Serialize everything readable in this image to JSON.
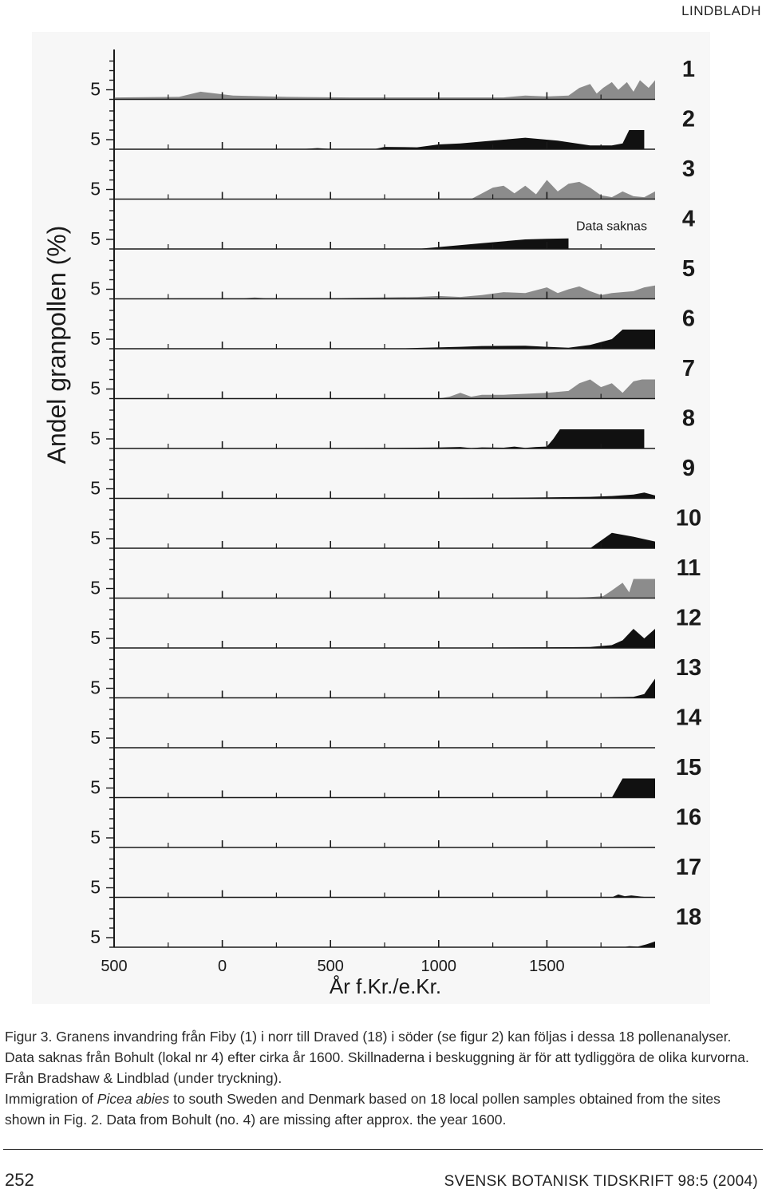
{
  "page": {
    "running_head": "LINDBLADH",
    "folio": "252",
    "journal": "SVENSK BOTANISK TIDSKRIFT 98:5 (2004)"
  },
  "caption": {
    "swedish_1": "Figur 3. Granens invandring från Fiby (1) i norr till Draved (18) i söder (se figur 2) kan följas i dessa 18 pollenanalyser.",
    "swedish_2": "Data saknas från Bohult (lokal nr 4) efter cirka år 1600. Skillnaderna i beskuggning är för att tydliggöra de olika kurvorna. Från Bradshaw & Lindblad (under tryckning).",
    "english_pre": "Immigration of ",
    "english_italic": "Picea abies",
    "english_post": " to south Sweden and Denmark based on 18 local pollen samples obtained from the sites shown in Fig. 2. Data from Bohult (no. 4) are missing after approx. the year 1600."
  },
  "colors": {
    "black_curve": "#111111",
    "gray_curve": "#8c8c8c",
    "background": "#f7f7f7"
  },
  "chart_data": {
    "type": "area",
    "ylabel": "Andel granpollen (%)",
    "xlabel": "År f.Kr./e.Kr.",
    "x_ticks": [
      -500,
      0,
      500,
      1000,
      1500
    ],
    "x_tick_labels": [
      "500",
      "0",
      "500",
      "1000",
      "1500"
    ],
    "xlim": [
      -500,
      2000
    ],
    "y_tick_label": "5",
    "y_unit_scale": 5,
    "annotation": "Data saknas",
    "series": [
      {
        "name": "1",
        "shade": "gray",
        "points": [
          [
            -500,
            1.0
          ],
          [
            -200,
            1.3
          ],
          [
            -100,
            4.0
          ],
          [
            50,
            2.0
          ],
          [
            300,
            1.3
          ],
          [
            600,
            1.0
          ],
          [
            1000,
            1.0
          ],
          [
            1300,
            1.0
          ],
          [
            1400,
            2.0
          ],
          [
            1500,
            1.5
          ],
          [
            1600,
            2.0
          ],
          [
            1650,
            6.0
          ],
          [
            1700,
            8.0
          ],
          [
            1730,
            3.0
          ],
          [
            1760,
            6.0
          ],
          [
            1800,
            9.0
          ],
          [
            1830,
            5.0
          ],
          [
            1870,
            9.0
          ],
          [
            1900,
            4.0
          ],
          [
            1930,
            10.0
          ],
          [
            1970,
            6.0
          ],
          [
            2000,
            10.0
          ]
        ]
      },
      {
        "name": "2",
        "shade": "black",
        "points": [
          [
            -500,
            0
          ],
          [
            350,
            0
          ],
          [
            440,
            0.6
          ],
          [
            520,
            0
          ],
          [
            700,
            0
          ],
          [
            750,
            1.2
          ],
          [
            900,
            1.0
          ],
          [
            1000,
            2.5
          ],
          [
            1100,
            3.0
          ],
          [
            1300,
            5.0
          ],
          [
            1400,
            6.0
          ],
          [
            1550,
            4.5
          ],
          [
            1700,
            2.0
          ],
          [
            1800,
            2.0
          ],
          [
            1850,
            3.0
          ],
          [
            1880,
            10.0
          ],
          [
            1950,
            10.0
          ],
          [
            1950,
            0
          ]
        ]
      },
      {
        "name": "3",
        "shade": "gray",
        "points": [
          [
            -500,
            0
          ],
          [
            700,
            0
          ],
          [
            740,
            0.3
          ],
          [
            800,
            0
          ],
          [
            1150,
            0
          ],
          [
            1250,
            6.0
          ],
          [
            1300,
            7.0
          ],
          [
            1350,
            3.0
          ],
          [
            1400,
            7.0
          ],
          [
            1450,
            2.5
          ],
          [
            1500,
            10.0
          ],
          [
            1550,
            4.0
          ],
          [
            1600,
            8.0
          ],
          [
            1650,
            9.0
          ],
          [
            1700,
            6.0
          ],
          [
            1750,
            2.0
          ],
          [
            1800,
            1.0
          ],
          [
            1850,
            4.0
          ],
          [
            1900,
            1.5
          ],
          [
            1950,
            1.0
          ],
          [
            2000,
            4.0
          ]
        ]
      },
      {
        "name": "4",
        "shade": "black",
        "points": [
          [
            -500,
            0
          ],
          [
            900,
            0
          ],
          [
            1000,
            1.0
          ],
          [
            1200,
            3.0
          ],
          [
            1400,
            5.0
          ],
          [
            1500,
            5.3
          ],
          [
            1600,
            5.5
          ],
          [
            1600,
            0
          ]
        ]
      },
      {
        "name": "5",
        "shade": "gray",
        "points": [
          [
            -500,
            0
          ],
          [
            -200,
            0.3
          ],
          [
            100,
            0.3
          ],
          [
            150,
            0.7
          ],
          [
            200,
            0.3
          ],
          [
            500,
            0.3
          ],
          [
            600,
            0.5
          ],
          [
            900,
            1.0
          ],
          [
            1000,
            1.5
          ],
          [
            1100,
            1.0
          ],
          [
            1200,
            2.0
          ],
          [
            1300,
            3.5
          ],
          [
            1400,
            3.0
          ],
          [
            1500,
            6.0
          ],
          [
            1550,
            3.0
          ],
          [
            1600,
            5.0
          ],
          [
            1650,
            6.5
          ],
          [
            1700,
            4.0
          ],
          [
            1750,
            2.0
          ],
          [
            1800,
            3.0
          ],
          [
            1900,
            4.0
          ],
          [
            1950,
            6.0
          ],
          [
            2000,
            7.0
          ]
        ]
      },
      {
        "name": "6",
        "shade": "black",
        "points": [
          [
            -500,
            0
          ],
          [
            800,
            0
          ],
          [
            900,
            0.4
          ],
          [
            1100,
            1.0
          ],
          [
            1200,
            1.4
          ],
          [
            1400,
            1.6
          ],
          [
            1500,
            1.0
          ],
          [
            1600,
            0.5
          ],
          [
            1700,
            2.0
          ],
          [
            1800,
            5.0
          ],
          [
            1850,
            10.0
          ],
          [
            2000,
            10.0
          ]
        ]
      },
      {
        "name": "7",
        "shade": "gray",
        "points": [
          [
            -500,
            0
          ],
          [
            1000,
            0
          ],
          [
            1050,
            1.0
          ],
          [
            1100,
            3.0
          ],
          [
            1150,
            1.0
          ],
          [
            1200,
            2.0
          ],
          [
            1300,
            2.0
          ],
          [
            1400,
            2.5
          ],
          [
            1500,
            3.0
          ],
          [
            1600,
            4.0
          ],
          [
            1650,
            8.0
          ],
          [
            1700,
            10.0
          ],
          [
            1750,
            6.0
          ],
          [
            1800,
            8.0
          ],
          [
            1850,
            3.0
          ],
          [
            1900,
            9.0
          ],
          [
            1940,
            10.0
          ],
          [
            2000,
            10.0
          ]
        ]
      },
      {
        "name": "8",
        "shade": "black",
        "points": [
          [
            -500,
            0
          ],
          [
            -300,
            0.2
          ],
          [
            -100,
            0.2
          ],
          [
            200,
            0.2
          ],
          [
            500,
            0.2
          ],
          [
            800,
            0.3
          ],
          [
            1000,
            0.5
          ],
          [
            1100,
            0.8
          ],
          [
            1150,
            0.2
          ],
          [
            1200,
            0.6
          ],
          [
            1300,
            0.4
          ],
          [
            1350,
            1.0
          ],
          [
            1400,
            0.3
          ],
          [
            1450,
            0.8
          ],
          [
            1500,
            1.0
          ],
          [
            1530,
            5.0
          ],
          [
            1560,
            10.0
          ],
          [
            1950,
            10.0
          ],
          [
            1950,
            0
          ]
        ]
      },
      {
        "name": "9",
        "shade": "black",
        "points": [
          [
            -500,
            0
          ],
          [
            400,
            0
          ],
          [
            700,
            0.1
          ],
          [
            900,
            0.1
          ],
          [
            1100,
            0.2
          ],
          [
            1300,
            0.3
          ],
          [
            1500,
            0.5
          ],
          [
            1700,
            0.8
          ],
          [
            1800,
            1.2
          ],
          [
            1900,
            2.0
          ],
          [
            1950,
            3.0
          ],
          [
            2000,
            1.5
          ],
          [
            2000,
            0
          ]
        ]
      },
      {
        "name": "10",
        "shade": "black",
        "points": [
          [
            -500,
            0
          ],
          [
            1700,
            0
          ],
          [
            1800,
            8.0
          ],
          [
            1900,
            6.0
          ],
          [
            2000,
            3.5
          ],
          [
            2000,
            0
          ]
        ]
      },
      {
        "name": "11",
        "shade": "gray",
        "points": [
          [
            -500,
            0
          ],
          [
            1600,
            0
          ],
          [
            1700,
            0.5
          ],
          [
            1760,
            1.0
          ],
          [
            1800,
            4.0
          ],
          [
            1850,
            8.0
          ],
          [
            1880,
            3.0
          ],
          [
            1900,
            10.0
          ],
          [
            2000,
            10.0
          ]
        ]
      },
      {
        "name": "12",
        "shade": "black",
        "points": [
          [
            -500,
            0
          ],
          [
            1000,
            0
          ],
          [
            1200,
            0.2
          ],
          [
            1400,
            0.3
          ],
          [
            1600,
            0.4
          ],
          [
            1700,
            0.5
          ],
          [
            1800,
            1.5
          ],
          [
            1850,
            4.0
          ],
          [
            1900,
            10.0
          ],
          [
            1950,
            5.0
          ],
          [
            2000,
            10.0
          ],
          [
            2000,
            0
          ]
        ]
      },
      {
        "name": "13",
        "shade": "black",
        "points": [
          [
            -500,
            0
          ],
          [
            1600,
            0
          ],
          [
            1800,
            0.3
          ],
          [
            1900,
            0.5
          ],
          [
            1950,
            2.0
          ],
          [
            2000,
            10.0
          ],
          [
            2000,
            0
          ]
        ]
      },
      {
        "name": "14",
        "shade": "black",
        "points": [
          [
            -500,
            0
          ],
          [
            -400,
            0.2
          ],
          [
            -200,
            0.1
          ],
          [
            500,
            0
          ],
          [
            1000,
            0.1
          ],
          [
            1500,
            0.2
          ],
          [
            1900,
            0.2
          ],
          [
            2000,
            0.1
          ],
          [
            2000,
            0
          ]
        ]
      },
      {
        "name": "15",
        "shade": "black",
        "points": [
          [
            -500,
            0
          ],
          [
            1800,
            0
          ],
          [
            1850,
            10.0
          ],
          [
            2000,
            10.0
          ],
          [
            2000,
            0
          ]
        ]
      },
      {
        "name": "16",
        "shade": "black",
        "points": [
          [
            -500,
            0
          ],
          [
            1000,
            0
          ],
          [
            1500,
            0.1
          ],
          [
            1800,
            0.2
          ],
          [
            2000,
            0.3
          ],
          [
            2000,
            0
          ]
        ]
      },
      {
        "name": "17",
        "shade": "black",
        "points": [
          [
            -500,
            0
          ],
          [
            1800,
            0
          ],
          [
            1830,
            1.5
          ],
          [
            1860,
            0.6
          ],
          [
            1890,
            1.0
          ],
          [
            1950,
            0.2
          ],
          [
            2000,
            0
          ]
        ]
      },
      {
        "name": "18",
        "shade": "black",
        "points": [
          [
            -500,
            0
          ],
          [
            1850,
            0
          ],
          [
            1880,
            0.5
          ],
          [
            1920,
            0.3
          ],
          [
            1960,
            1.5
          ],
          [
            2000,
            3.0
          ],
          [
            2000,
            0
          ]
        ]
      }
    ]
  }
}
